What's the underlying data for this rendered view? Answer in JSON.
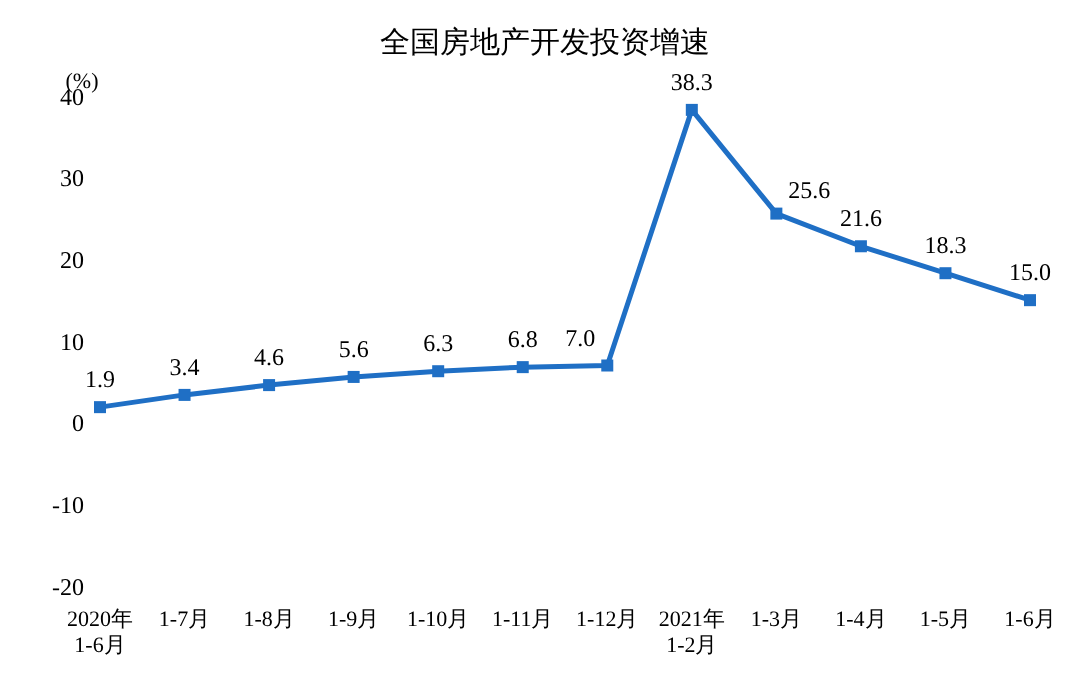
{
  "chart_data": {
    "type": "line",
    "title": "全国房地产开发投资增速",
    "ylabel": "(%)",
    "categories": [
      "2020年\n1-6月",
      "1-7月",
      "1-8月",
      "1-9月",
      "1-10月",
      "1-11月",
      "1-12月",
      "2021年\n1-2月",
      "1-3月",
      "1-4月",
      "1-5月",
      "1-6月"
    ],
    "series": [
      {
        "color": "#1f6fc5",
        "values": [
          1.9,
          3.4,
          4.6,
          5.6,
          6.3,
          6.8,
          7.0,
          38.3,
          25.6,
          21.6,
          18.3,
          15.0
        ],
        "value_labels": [
          "1.9",
          "3.4",
          "4.6",
          "5.6",
          "6.3",
          "6.8",
          "7.0",
          "38.3",
          "25.6",
          "21.6",
          "18.3",
          "15.0"
        ]
      }
    ],
    "ylim": [
      -20,
      40
    ],
    "yticks": [
      -20,
      -10,
      0,
      10,
      20,
      30,
      40
    ],
    "marker": "square",
    "line_style": "solid"
  }
}
